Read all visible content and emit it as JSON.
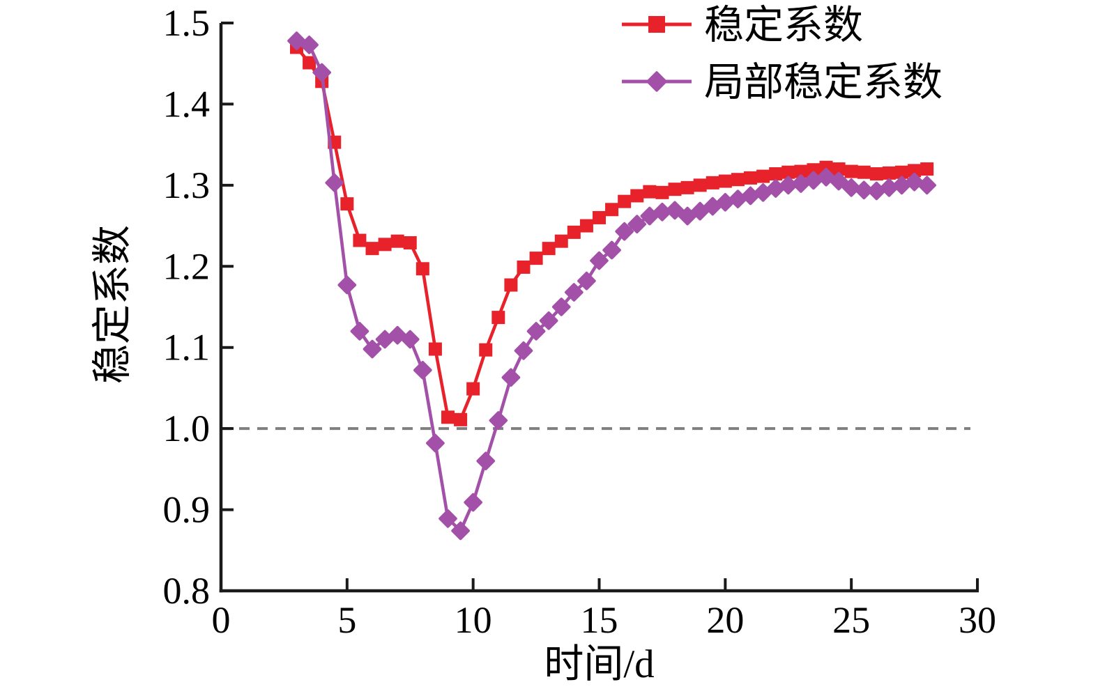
{
  "figure": {
    "background": "#ffffff",
    "text_color": "#000000",
    "axis_color": "#1a1a1a"
  },
  "chart_data": {
    "type": "line",
    "title": "",
    "xlabel": "时间/d",
    "ylabel": "稳定系数",
    "xlim": [
      0,
      30
    ],
    "ylim": [
      0.8,
      1.5
    ],
    "x_ticks": [
      0,
      5,
      10,
      15,
      20,
      25,
      30
    ],
    "x_tick_labels": [
      "0",
      "5",
      "10",
      "15",
      "20",
      "25",
      "30"
    ],
    "y_ticks": [
      0.8,
      0.9,
      1.0,
      1.1,
      1.2,
      1.3,
      1.4,
      1.5
    ],
    "y_tick_labels": [
      "0.8",
      "0.9",
      "1.0",
      "1.1",
      "1.2",
      "1.3",
      "1.4",
      "1.5"
    ],
    "grid": false,
    "legend_position": "top-right-inside",
    "reference_line": {
      "y": 1.0,
      "style": "dashed",
      "color": "#7f7f7f"
    },
    "x": [
      3,
      3.5,
      4,
      4.5,
      5,
      5.5,
      6,
      6.5,
      7,
      7.5,
      8,
      8.5,
      9,
      9.5,
      10,
      10.5,
      11,
      11.5,
      12,
      12.5,
      13,
      13.5,
      14,
      14.5,
      15,
      15.5,
      16,
      16.5,
      17,
      17.5,
      18,
      18.5,
      19,
      19.5,
      20,
      20.5,
      21,
      21.5,
      22,
      22.5,
      23,
      23.5,
      24,
      24.5,
      25,
      25.5,
      26,
      26.5,
      27,
      27.5,
      28
    ],
    "series": [
      {
        "name": "稳定系数",
        "color": "#e8222a",
        "marker": "square",
        "values": [
          1.47,
          1.451,
          1.428,
          1.353,
          1.277,
          1.232,
          1.222,
          1.227,
          1.231,
          1.229,
          1.197,
          1.098,
          1.014,
          1.011,
          1.049,
          1.097,
          1.137,
          1.177,
          1.199,
          1.21,
          1.222,
          1.231,
          1.242,
          1.25,
          1.26,
          1.27,
          1.28,
          1.287,
          1.292,
          1.291,
          1.295,
          1.297,
          1.3,
          1.303,
          1.305,
          1.307,
          1.309,
          1.311,
          1.314,
          1.316,
          1.317,
          1.319,
          1.322,
          1.32,
          1.317,
          1.316,
          1.314,
          1.315,
          1.316,
          1.318,
          1.32
        ]
      },
      {
        "name": "局部稳定系数",
        "color": "#a351a8",
        "marker": "diamond",
        "values": [
          1.478,
          1.473,
          1.439,
          1.303,
          1.177,
          1.12,
          1.098,
          1.11,
          1.115,
          1.11,
          1.072,
          0.982,
          0.889,
          0.874,
          0.909,
          0.96,
          1.01,
          1.063,
          1.096,
          1.12,
          1.133,
          1.15,
          1.168,
          1.182,
          1.207,
          1.22,
          1.243,
          1.252,
          1.262,
          1.267,
          1.269,
          1.262,
          1.268,
          1.274,
          1.279,
          1.283,
          1.287,
          1.291,
          1.296,
          1.3,
          1.302,
          1.306,
          1.31,
          1.305,
          1.297,
          1.294,
          1.293,
          1.297,
          1.3,
          1.304,
          1.3
        ]
      }
    ]
  }
}
